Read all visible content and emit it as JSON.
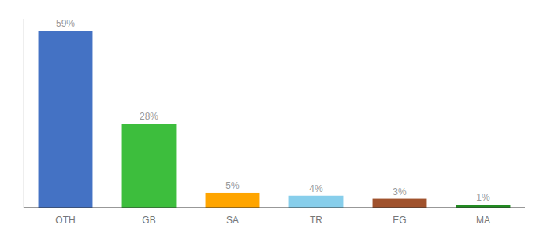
{
  "chart_data": {
    "type": "bar",
    "categories": [
      "OTH",
      "GB",
      "SA",
      "TR",
      "EG",
      "MA"
    ],
    "values": [
      59,
      28,
      5,
      4,
      3,
      1
    ],
    "value_labels": [
      "59%",
      "28%",
      "5%",
      "4%",
      "3%",
      "1%"
    ],
    "colors": [
      "#4472C4",
      "#3DBE3D",
      "#FFA500",
      "#87CEEB",
      "#A0522D",
      "#228B22"
    ],
    "ylim": [
      0,
      63
    ],
    "data_labels": true,
    "tick_labels": "x",
    "grid": false
  }
}
